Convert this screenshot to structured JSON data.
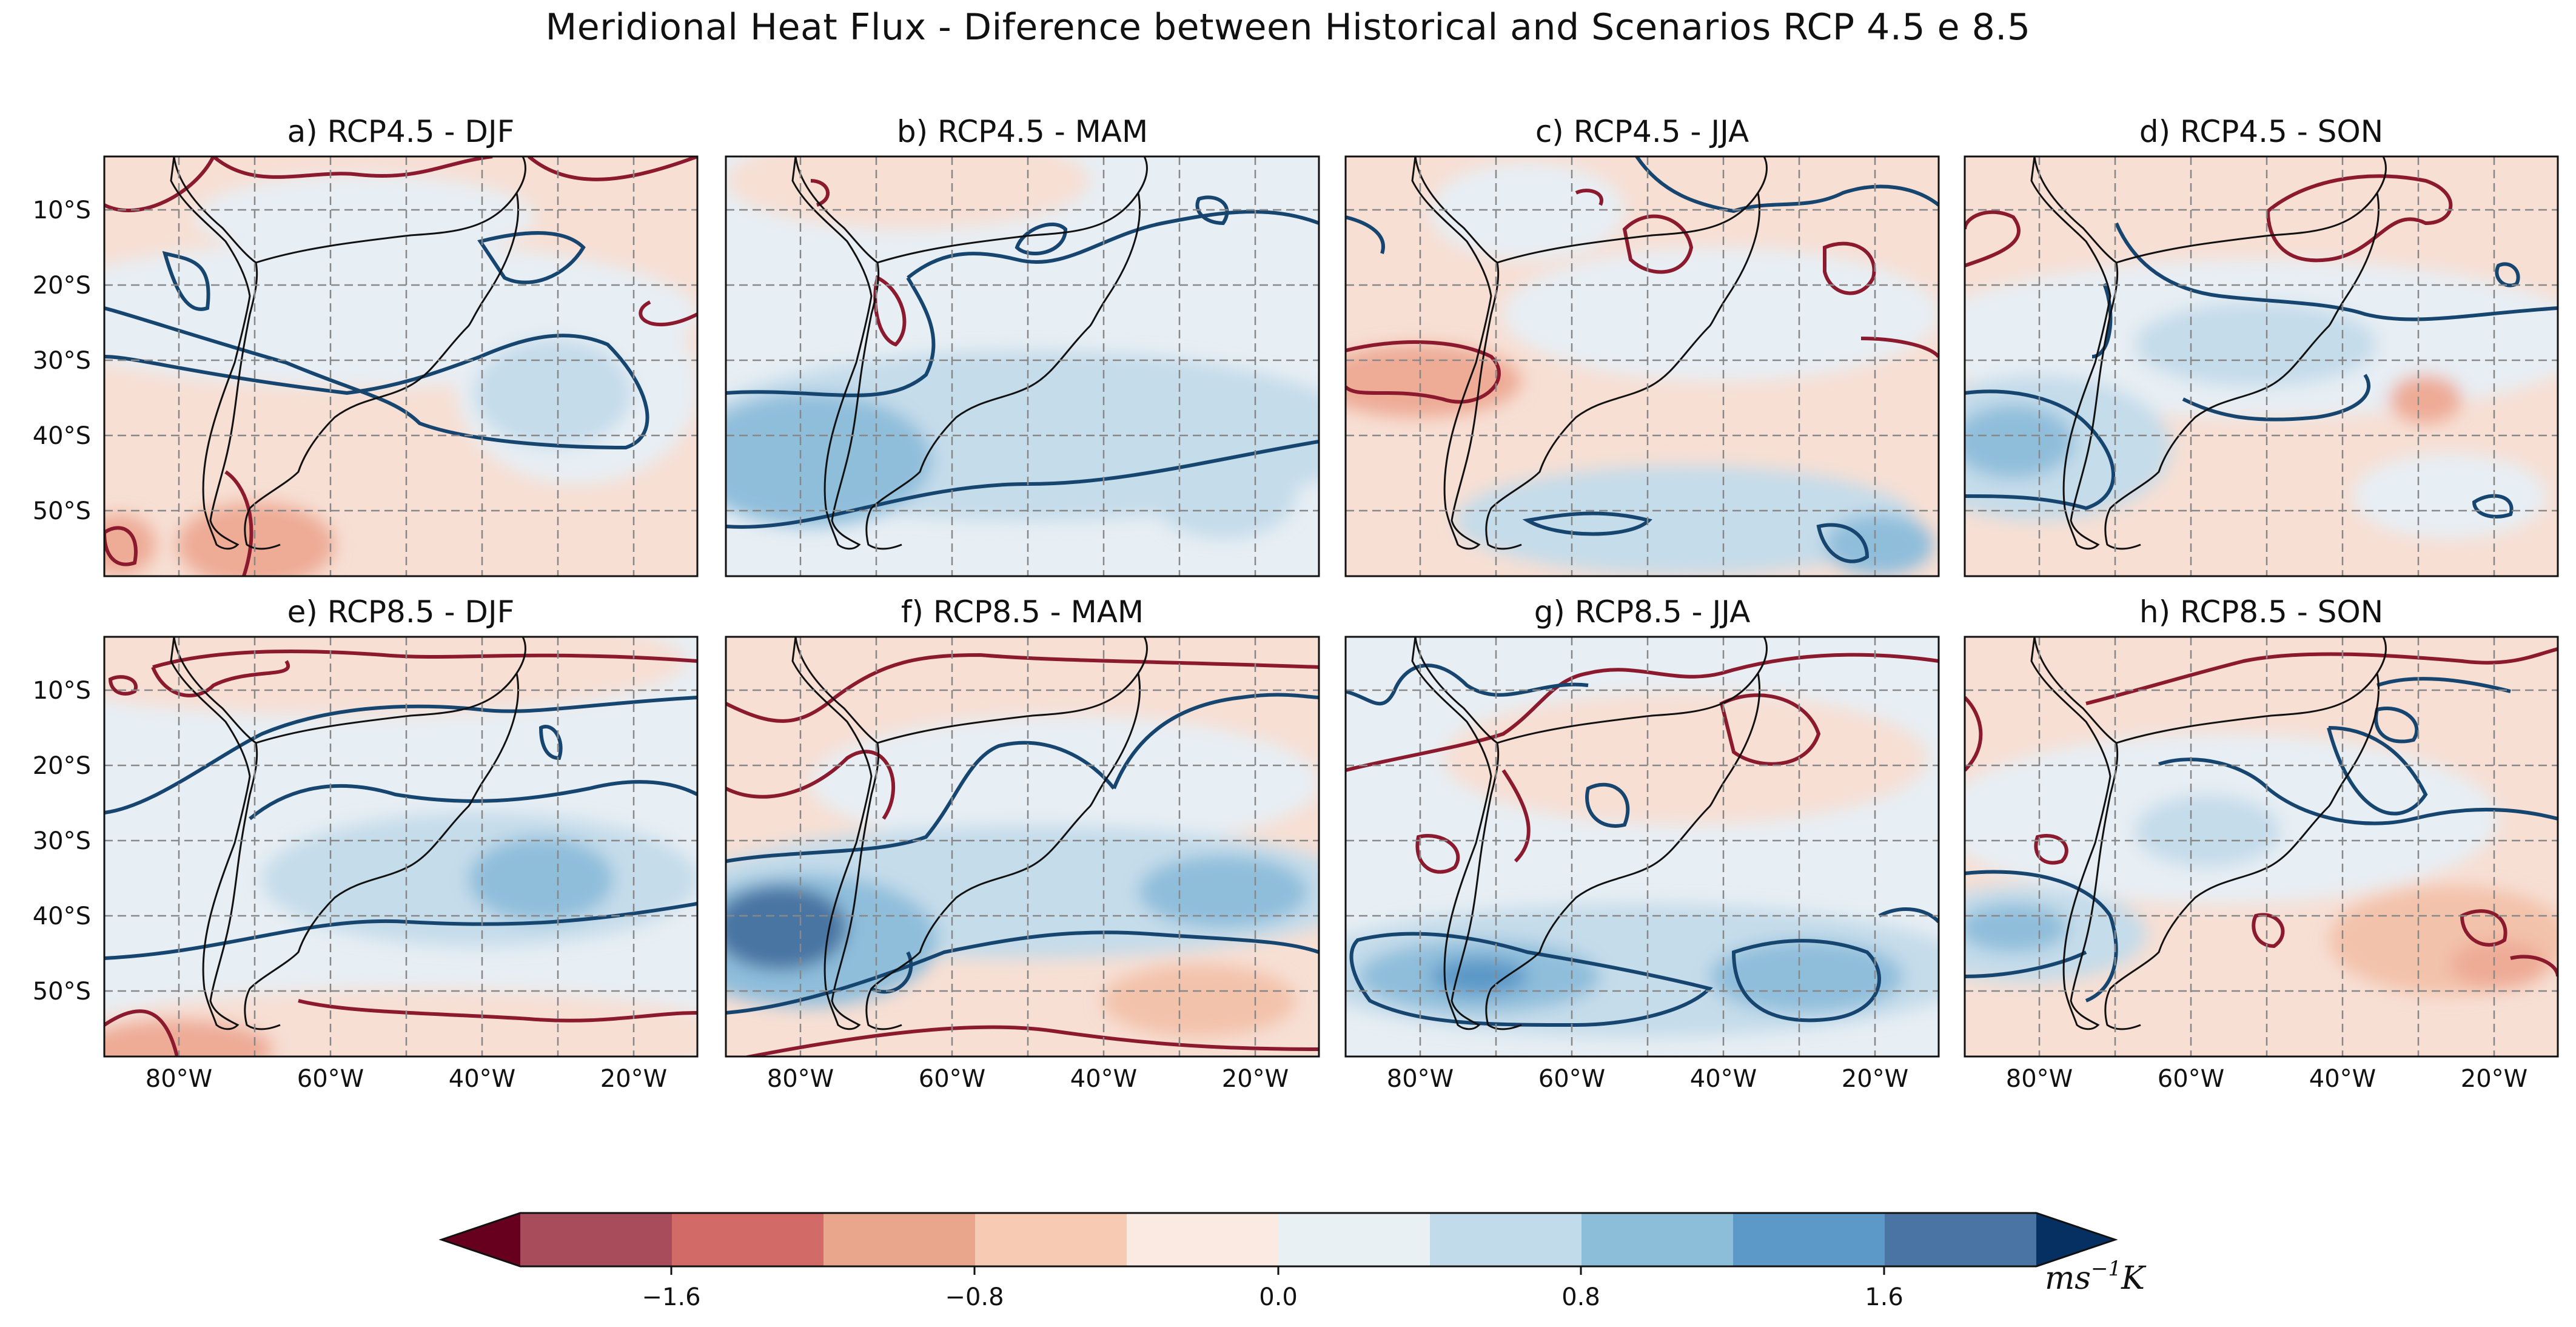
{
  "title": "Meridional Heat Flux - Diference between Historical and Scenarios RCP 4.5 e 8.5",
  "panels": [
    {
      "id": "a",
      "title": "a) RCP4.5 - DJF"
    },
    {
      "id": "b",
      "title": "b) RCP4.5 - MAM"
    },
    {
      "id": "c",
      "title": "c) RCP4.5 - JJA"
    },
    {
      "id": "d",
      "title": "d) RCP4.5 - SON"
    },
    {
      "id": "e",
      "title": "e) RCP8.5 - DJF"
    },
    {
      "id": "f",
      "title": "f) RCP8.5 - MAM"
    },
    {
      "id": "g",
      "title": "g) RCP8.5 - JJA"
    },
    {
      "id": "h",
      "title": "h) RCP8.5 - SON"
    }
  ],
  "latitude_labels": [
    "10°S",
    "20°S",
    "30°S",
    "40°S",
    "50°S"
  ],
  "longitude_labels": [
    "80°W",
    "60°W",
    "40°W",
    "20°W"
  ],
  "colorbar": {
    "tick_labels": [
      "−1.6",
      "−0.8",
      "0.0",
      "0.8",
      "1.6"
    ],
    "unit": "ms",
    "unit_exp": "−1",
    "unit_k": "K",
    "colors": [
      "#67001f",
      "#a84b5b",
      "#d26a68",
      "#eaa58d",
      "#f7cab4",
      "#fbeae2",
      "#e9f0f4",
      "#c2dbea",
      "#8cbeda",
      "#5c98c8",
      "#4a74a3",
      "#053061"
    ]
  },
  "map_style": {
    "land_outline": "#111111",
    "negative_contour": "#8b1a2e",
    "positive_contour": "#16456f",
    "grid": "#888888"
  }
}
